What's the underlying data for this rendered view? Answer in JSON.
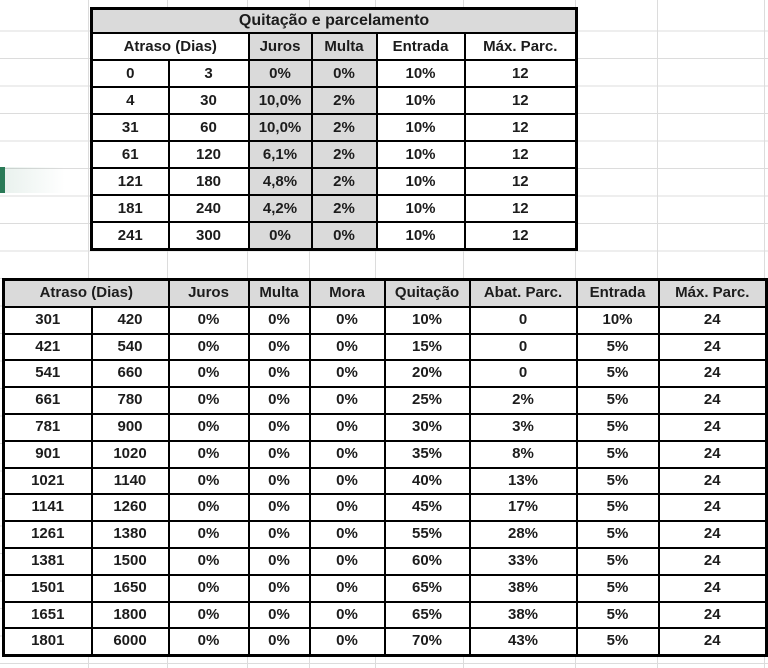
{
  "colors": {
    "cell_fill_gray": "#dadada",
    "table_border": "#000000",
    "gridline": "#dcdcdc",
    "selection_green": "#2a7a57",
    "text": "#1c1c1c"
  },
  "top_table": {
    "title": "Quitação e parcelamento",
    "headers": {
      "atraso": "Atraso (Dias)",
      "juros": "Juros",
      "multa": "Multa",
      "entrada": "Entrada",
      "max_parc": "Máx. Parc."
    },
    "rows": [
      [
        "0",
        "3",
        "0%",
        "0%",
        "10%",
        "12"
      ],
      [
        "4",
        "30",
        "10,0%",
        "2%",
        "10%",
        "12"
      ],
      [
        "31",
        "60",
        "10,0%",
        "2%",
        "10%",
        "12"
      ],
      [
        "61",
        "120",
        "6,1%",
        "2%",
        "10%",
        "12"
      ],
      [
        "121",
        "180",
        "4,8%",
        "2%",
        "10%",
        "12"
      ],
      [
        "181",
        "240",
        "4,2%",
        "2%",
        "10%",
        "12"
      ],
      [
        "241",
        "300",
        "0%",
        "0%",
        "10%",
        "12"
      ]
    ]
  },
  "bottom_table": {
    "headers": {
      "atraso": "Atraso (Dias)",
      "juros": "Juros",
      "multa": "Multa",
      "mora": "Mora",
      "quitacao": "Quitação",
      "abat_parc": "Abat. Parc.",
      "entrada": "Entrada",
      "max_parc": "Máx. Parc."
    },
    "rows": [
      [
        "301",
        "420",
        "0%",
        "0%",
        "0%",
        "10%",
        "0",
        "10%",
        "24"
      ],
      [
        "421",
        "540",
        "0%",
        "0%",
        "0%",
        "15%",
        "0",
        "5%",
        "24"
      ],
      [
        "541",
        "660",
        "0%",
        "0%",
        "0%",
        "20%",
        "0",
        "5%",
        "24"
      ],
      [
        "661",
        "780",
        "0%",
        "0%",
        "0%",
        "25%",
        "2%",
        "5%",
        "24"
      ],
      [
        "781",
        "900",
        "0%",
        "0%",
        "0%",
        "30%",
        "3%",
        "5%",
        "24"
      ],
      [
        "901",
        "1020",
        "0%",
        "0%",
        "0%",
        "35%",
        "8%",
        "5%",
        "24"
      ],
      [
        "1021",
        "1140",
        "0%",
        "0%",
        "0%",
        "40%",
        "13%",
        "5%",
        "24"
      ],
      [
        "1141",
        "1260",
        "0%",
        "0%",
        "0%",
        "45%",
        "17%",
        "5%",
        "24"
      ],
      [
        "1261",
        "1380",
        "0%",
        "0%",
        "0%",
        "55%",
        "28%",
        "5%",
        "24"
      ],
      [
        "1381",
        "1500",
        "0%",
        "0%",
        "0%",
        "60%",
        "33%",
        "5%",
        "24"
      ],
      [
        "1501",
        "1650",
        "0%",
        "0%",
        "0%",
        "65%",
        "38%",
        "5%",
        "24"
      ],
      [
        "1651",
        "1800",
        "0%",
        "0%",
        "0%",
        "65%",
        "38%",
        "5%",
        "24"
      ],
      [
        "1801",
        "6000",
        "0%",
        "0%",
        "0%",
        "70%",
        "43%",
        "5%",
        "24"
      ]
    ]
  }
}
